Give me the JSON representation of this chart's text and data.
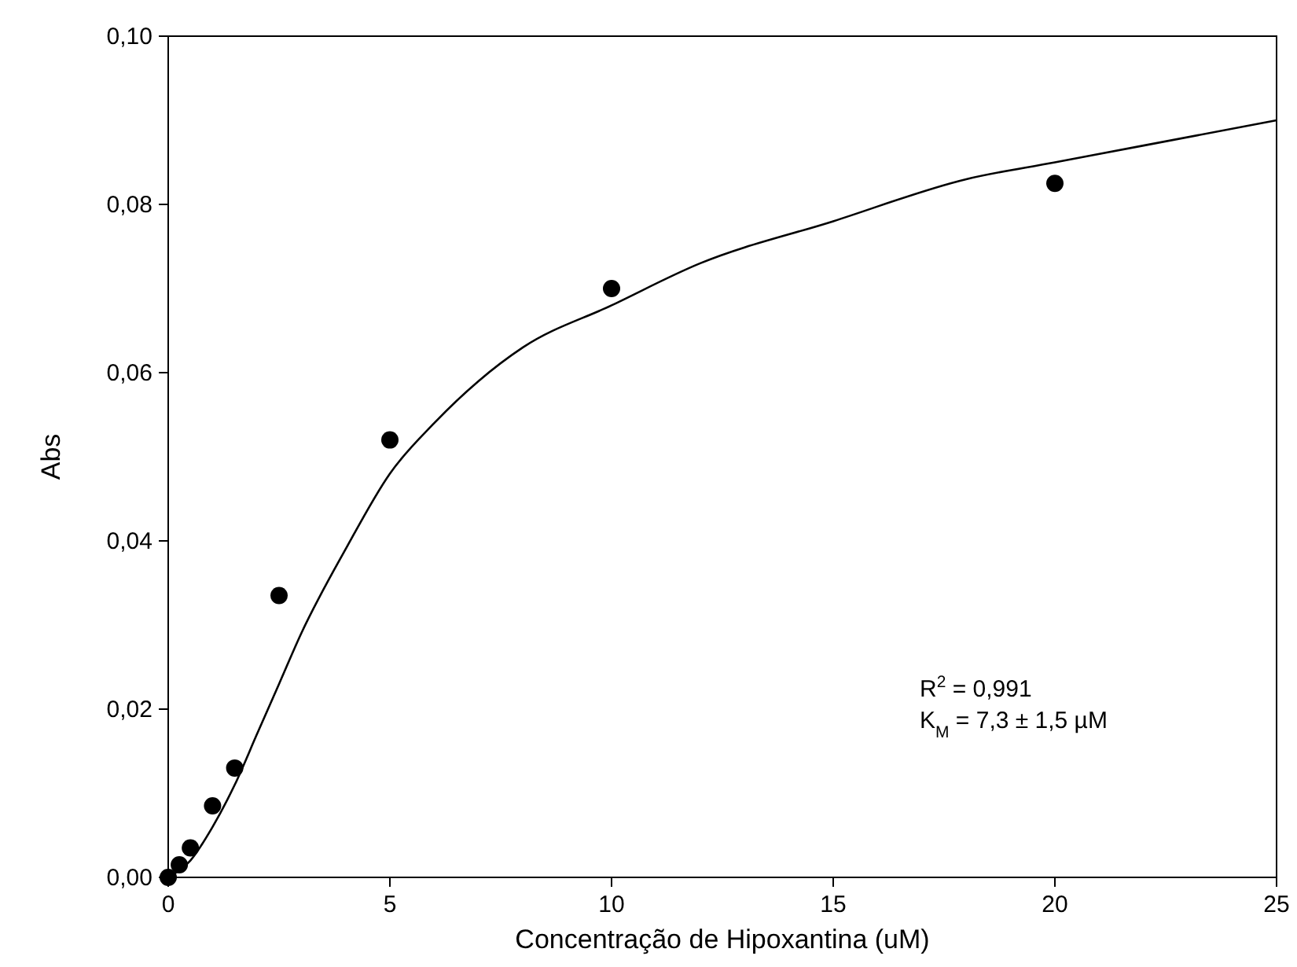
{
  "chart_data": {
    "type": "scatter",
    "xlabel": "Concentração de Hipoxantina (uM)",
    "ylabel": "Abs",
    "xlim": [
      0,
      25
    ],
    "xticks": [
      0,
      5,
      10,
      15,
      20,
      25
    ],
    "ylim": [
      0,
      0.1
    ],
    "yticks": [
      {
        "value": 0,
        "label": "0,00"
      },
      {
        "value": 0.02,
        "label": "0,02"
      },
      {
        "value": 0.04,
        "label": "0,04"
      },
      {
        "value": 0.06,
        "label": "0,06"
      },
      {
        "value": 0.08,
        "label": "0,08"
      },
      {
        "value": 0.1,
        "label": "0,10"
      }
    ],
    "grid": false,
    "series": [
      {
        "color": "#000000",
        "marker": "circle",
        "x": [
          0,
          0.25,
          0.5,
          1,
          1.5,
          2.5,
          5,
          10,
          20
        ],
        "values": [
          0,
          0.0015,
          0.0035,
          0.0085,
          0.013,
          0.0335,
          0.052,
          0.07,
          0.0825
        ]
      },
      {
        "type": "line",
        "color": "#000000",
        "marker": "none",
        "line_style": "solid",
        "x": [
          0,
          0.5,
          1,
          1.5,
          2,
          2.5,
          3,
          4,
          5,
          6,
          7,
          8,
          10,
          12,
          15,
          18,
          20,
          22,
          25
        ],
        "values": [
          0,
          0.002,
          0.006,
          0.011,
          0.017,
          0.023,
          0.029,
          0.039,
          0.048,
          0.054,
          0.059,
          0.063,
          0.068,
          0.073,
          0.078,
          0.083,
          0.085,
          0.087,
          0.09
        ]
      }
    ],
    "annotations": [
      "R$^{2}$ = 0,991",
      "K$_{M}$ = 7,3 ± 1,5 µM"
    ]
  }
}
